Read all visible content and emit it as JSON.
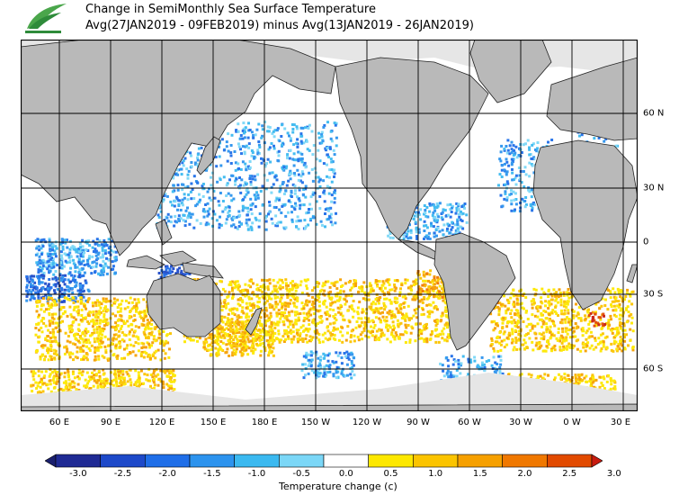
{
  "header": {
    "title_line1": "Change in SemiMonthly Sea Surface Temperature",
    "title_line2": "Avg(27JAN2019 - 09FEB2019) minus Avg(13JAN2019 - 26JAN2019)",
    "logo": "leaf-logo-icon"
  },
  "map": {
    "longitude_labels": [
      "60 E",
      "90 E",
      "120 E",
      "150 E",
      "180 E",
      "150 W",
      "120 W",
      "90 W",
      "60 W",
      "30 W",
      "0 W",
      "30 E"
    ],
    "latitude_labels": [
      "60 N",
      "30 N",
      "0",
      "30 S",
      "60 S"
    ],
    "colors": {
      "land": "#b9b9b9",
      "ocean_neutral": "#ffffff",
      "sea_ice": "#e6e6e6",
      "grid": "#000000"
    }
  },
  "colorbar": {
    "ticks": [
      "-3.0",
      "-2.5",
      "-2.0",
      "-1.5",
      "-1.0",
      "-0.5",
      "0.0",
      "0.5",
      "1.0",
      "1.5",
      "2.0",
      "2.5",
      "3.0"
    ],
    "colors": [
      "#1f2a94",
      "#1d49c9",
      "#1f6ee8",
      "#2c93ee",
      "#3bb9f0",
      "#7bd7f7",
      "#ffffff",
      "#fde800",
      "#fbc400",
      "#f6a000",
      "#f07800",
      "#e24a00",
      "#c81c10"
    ],
    "unit_label": "Temperature change  (c)"
  }
}
